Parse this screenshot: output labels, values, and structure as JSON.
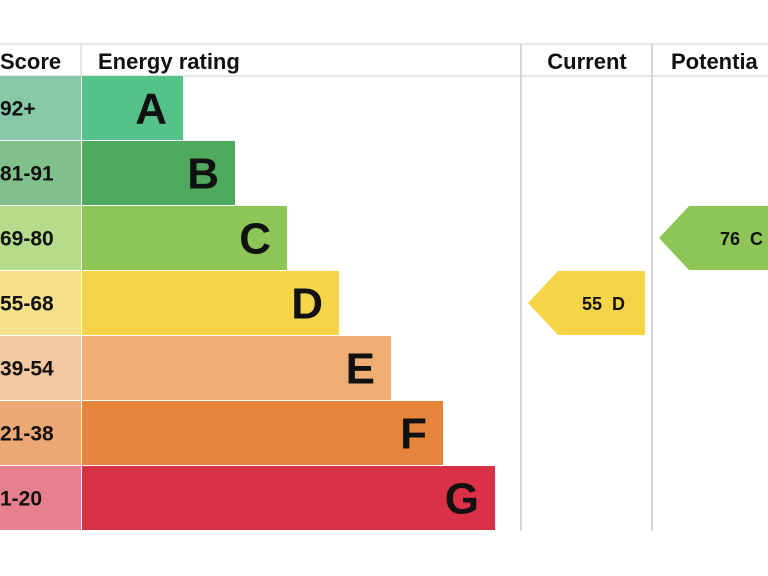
{
  "chart_data": {
    "type": "bar",
    "title": "Energy rating",
    "headers": {
      "score": "Score",
      "rating": "Energy rating",
      "current": "Current",
      "potential": "Potentia"
    },
    "bands": [
      {
        "letter": "A",
        "range": "92+",
        "color": "#55c28a",
        "tint": "#86c8a8"
      },
      {
        "letter": "B",
        "range": "81-91",
        "color": "#4faa5d",
        "tint": "#80c08a"
      },
      {
        "letter": "C",
        "range": "69-80",
        "color": "#8dc656",
        "tint": "#b5dc8a"
      },
      {
        "letter": "D",
        "range": "55-68",
        "color": "#f5d547",
        "tint": "#f6e08a"
      },
      {
        "letter": "E",
        "range": "39-54",
        "color": "#f0ad74",
        "tint": "#f4c8a0"
      },
      {
        "letter": "F",
        "range": "21-38",
        "color": "#e5843a",
        "tint": "#eca875"
      },
      {
        "letter": "G",
        "range": "1-20",
        "color": "#d93145",
        "tint": "#e6808e"
      }
    ],
    "current": {
      "score": 55,
      "letter": "D",
      "label": "55  D"
    },
    "potential": {
      "score": 76,
      "letter": "C",
      "label": "76  C"
    }
  }
}
